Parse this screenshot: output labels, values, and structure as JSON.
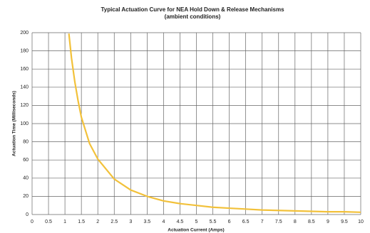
{
  "chart_data": {
    "type": "line",
    "title": "Typical Actuation Curve for NEA Hold Down & Release Mechanisms",
    "subtitle": "(ambient conditions)",
    "x_label": "Actuation Current (Amps)",
    "y_label": "Actuation Time (Milliseconds)",
    "x": [
      1.12,
      1.2,
      1.3,
      1.4,
      1.5,
      1.75,
      2,
      2.5,
      3,
      3.5,
      4,
      4.5,
      5,
      5.5,
      6,
      6.5,
      7,
      7.5,
      8,
      8.5,
      9,
      9.5,
      10
    ],
    "series": [
      {
        "name": "Actuation time",
        "color": "#f2c13a",
        "values": [
          199,
          172,
          146,
          125,
          107,
          78,
          61,
          39,
          27,
          20,
          15,
          12,
          10,
          8,
          7,
          6,
          5,
          4.5,
          4,
          3.5,
          3,
          3,
          2.5
        ]
      }
    ],
    "xlim": [
      0,
      10
    ],
    "xticks": [
      0,
      0.5,
      1,
      1.5,
      2,
      2.5,
      3,
      3.5,
      4,
      4.5,
      5,
      5.5,
      6,
      6.5,
      7,
      7.5,
      8,
      8.5,
      9,
      9.5,
      10
    ],
    "ylim": [
      0,
      200
    ],
    "yticks": [
      0,
      20,
      40,
      60,
      80,
      100,
      120,
      140,
      160,
      180,
      200
    ],
    "grid": true
  }
}
